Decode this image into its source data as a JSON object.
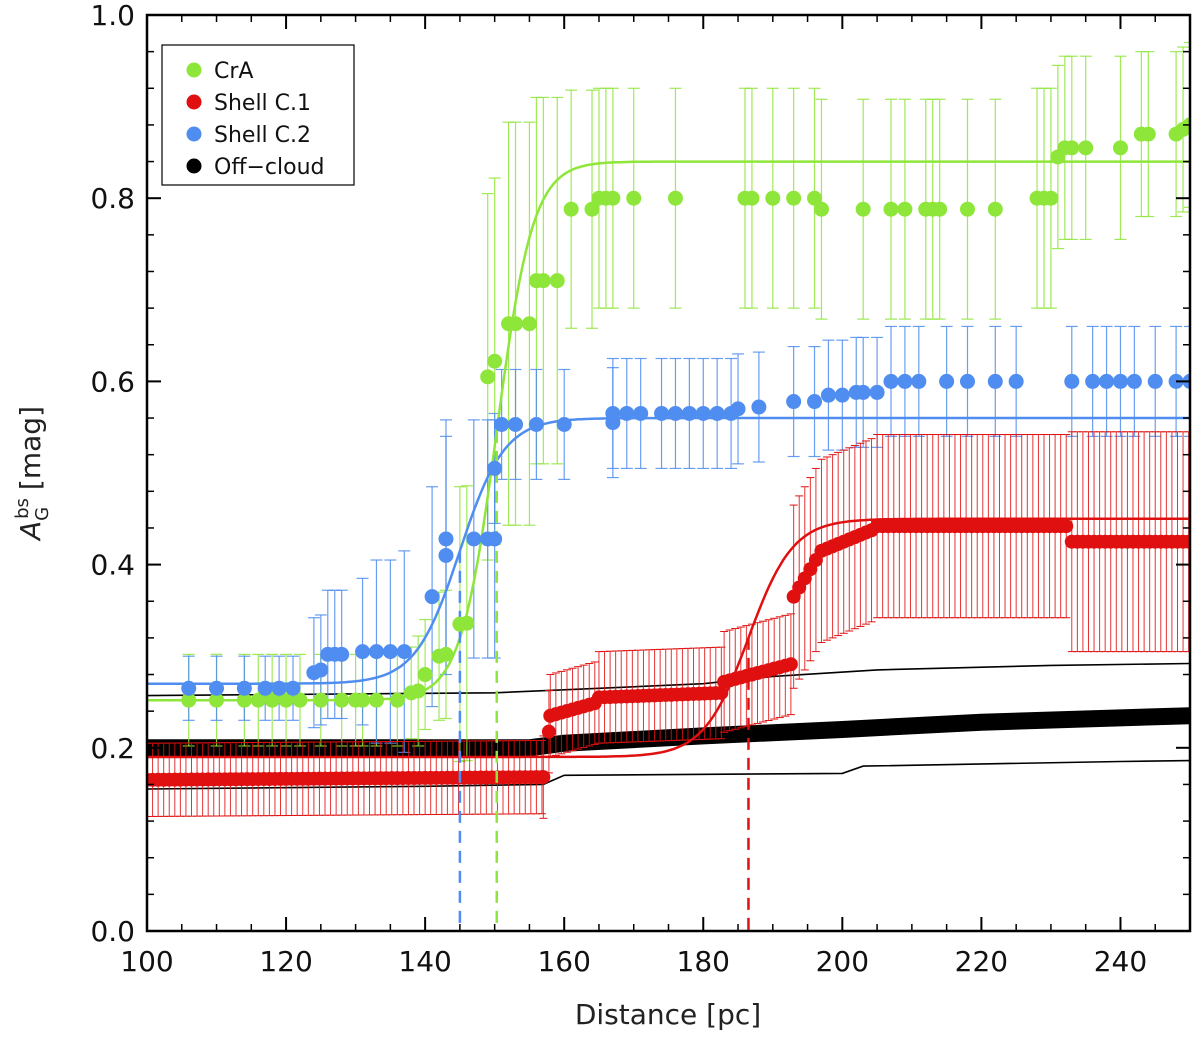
{
  "chart_data": {
    "type": "scatter",
    "xlabel": "Distance [pc]",
    "ylabel": "A",
    "ylabel_sup": "bs",
    "ylabel_sub": "G",
    "ylabel_unit": "[mag]",
    "xlim": [
      100,
      250
    ],
    "ylim": [
      0.0,
      1.0
    ],
    "x_ticks": [
      "100",
      "120",
      "140",
      "160",
      "180",
      "200",
      "220",
      "240"
    ],
    "y_ticks": [
      "0.0",
      "0.2",
      "0.4",
      "0.6",
      "0.8",
      "1.0"
    ],
    "grid": false,
    "legend_position": "top-left",
    "legend": [
      {
        "label": "CrA",
        "color": "#8fe63a"
      },
      {
        "label": "Shell C.1",
        "color": "#e01010"
      },
      {
        "label": "Shell C.2",
        "color": "#4f8df0"
      },
      {
        "label": "Off−cloud",
        "color": "#000000"
      }
    ],
    "series": [
      {
        "name": "CrA",
        "color": "#8fe63a",
        "points": [
          [
            106,
            0.252,
            0.05
          ],
          [
            110,
            0.252,
            0.05
          ],
          [
            114,
            0.252,
            0.05
          ],
          [
            116,
            0.252,
            0.05
          ],
          [
            118,
            0.252,
            0.05
          ],
          [
            120,
            0.252,
            0.05
          ],
          [
            122,
            0.252,
            0.05
          ],
          [
            125,
            0.252,
            0.05
          ],
          [
            128,
            0.252,
            0.05
          ],
          [
            130,
            0.252,
            0.05
          ],
          [
            131,
            0.252,
            0.05
          ],
          [
            133,
            0.252,
            0.05
          ],
          [
            136,
            0.252,
            0.05
          ],
          [
            138,
            0.26,
            0.05
          ],
          [
            139,
            0.262,
            0.06
          ],
          [
            140,
            0.28,
            0.06
          ],
          [
            142,
            0.3,
            0.07
          ],
          [
            143,
            0.302,
            0.07
          ],
          [
            145,
            0.335,
            0.15
          ],
          [
            146,
            0.336,
            0.15
          ],
          [
            149,
            0.605,
            0.2
          ],
          [
            150,
            0.622,
            0.2
          ],
          [
            152,
            0.663,
            0.22
          ],
          [
            153,
            0.663,
            0.22
          ],
          [
            155,
            0.663,
            0.22
          ],
          [
            156,
            0.71,
            0.2
          ],
          [
            157,
            0.71,
            0.2
          ],
          [
            159,
            0.71,
            0.2
          ],
          [
            161,
            0.788,
            0.13
          ],
          [
            164,
            0.788,
            0.13
          ],
          [
            165,
            0.8,
            0.12
          ],
          [
            166,
            0.8,
            0.12
          ],
          [
            167,
            0.8,
            0.12
          ],
          [
            170,
            0.8,
            0.12
          ],
          [
            176,
            0.8,
            0.12
          ],
          [
            186,
            0.8,
            0.12
          ],
          [
            187,
            0.8,
            0.12
          ],
          [
            190,
            0.8,
            0.12
          ],
          [
            193,
            0.8,
            0.12
          ],
          [
            196,
            0.8,
            0.12
          ],
          [
            197,
            0.788,
            0.12
          ],
          [
            203,
            0.788,
            0.12
          ],
          [
            207,
            0.788,
            0.12
          ],
          [
            209,
            0.788,
            0.12
          ],
          [
            212,
            0.788,
            0.12
          ],
          [
            213,
            0.788,
            0.12
          ],
          [
            214,
            0.788,
            0.12
          ],
          [
            218,
            0.788,
            0.12
          ],
          [
            222,
            0.788,
            0.12
          ],
          [
            228,
            0.8,
            0.12
          ],
          [
            229,
            0.8,
            0.12
          ],
          [
            230,
            0.8,
            0.12
          ],
          [
            231,
            0.845,
            0.1
          ],
          [
            232,
            0.855,
            0.1
          ],
          [
            233,
            0.855,
            0.1
          ],
          [
            235,
            0.855,
            0.1
          ],
          [
            240,
            0.855,
            0.1
          ],
          [
            243,
            0.87,
            0.09
          ],
          [
            244,
            0.87,
            0.09
          ],
          [
            248,
            0.87,
            0.09
          ],
          [
            249,
            0.875,
            0.09
          ],
          [
            250,
            0.88,
            0.09
          ]
        ]
      },
      {
        "name": "Shell C.2",
        "color": "#4f8df0",
        "points": [
          [
            106,
            0.265,
            0.035
          ],
          [
            110,
            0.265,
            0.035
          ],
          [
            114,
            0.265,
            0.035
          ],
          [
            117,
            0.265,
            0.035
          ],
          [
            119,
            0.265,
            0.035
          ],
          [
            121,
            0.265,
            0.035
          ],
          [
            124,
            0.282,
            0.06
          ],
          [
            125,
            0.285,
            0.06
          ],
          [
            126,
            0.302,
            0.07
          ],
          [
            127,
            0.302,
            0.07
          ],
          [
            128,
            0.302,
            0.07
          ],
          [
            131,
            0.305,
            0.08
          ],
          [
            133,
            0.305,
            0.1
          ],
          [
            135,
            0.305,
            0.1
          ],
          [
            137,
            0.305,
            0.11
          ],
          [
            141,
            0.365,
            0.12
          ],
          [
            143,
            0.41,
            0.13
          ],
          [
            143,
            0.428,
            0.13
          ],
          [
            147,
            0.428,
            0.13
          ],
          [
            149,
            0.428,
            0.13
          ],
          [
            150,
            0.428,
            0.13
          ],
          [
            150,
            0.505,
            0.06
          ],
          [
            151,
            0.553,
            0.06
          ],
          [
            153,
            0.553,
            0.06
          ],
          [
            156,
            0.553,
            0.06
          ],
          [
            160,
            0.553,
            0.06
          ],
          [
            167,
            0.555,
            0.06
          ],
          [
            167,
            0.565,
            0.06
          ],
          [
            169,
            0.565,
            0.06
          ],
          [
            171,
            0.565,
            0.06
          ],
          [
            174,
            0.565,
            0.06
          ],
          [
            176,
            0.565,
            0.06
          ],
          [
            178,
            0.565,
            0.06
          ],
          [
            180,
            0.565,
            0.06
          ],
          [
            182,
            0.565,
            0.06
          ],
          [
            184,
            0.565,
            0.06
          ],
          [
            185,
            0.57,
            0.06
          ],
          [
            188,
            0.572,
            0.06
          ],
          [
            193,
            0.578,
            0.06
          ],
          [
            196,
            0.578,
            0.06
          ],
          [
            198,
            0.585,
            0.06
          ],
          [
            200,
            0.585,
            0.06
          ],
          [
            202,
            0.588,
            0.06
          ],
          [
            203,
            0.588,
            0.06
          ],
          [
            205,
            0.588,
            0.06
          ],
          [
            207,
            0.6,
            0.06
          ],
          [
            209,
            0.6,
            0.06
          ],
          [
            211,
            0.6,
            0.06
          ],
          [
            215,
            0.6,
            0.06
          ],
          [
            218,
            0.6,
            0.06
          ],
          [
            222,
            0.6,
            0.06
          ],
          [
            225,
            0.6,
            0.06
          ],
          [
            233,
            0.6,
            0.06
          ],
          [
            236,
            0.6,
            0.06
          ],
          [
            238,
            0.6,
            0.06
          ],
          [
            240,
            0.6,
            0.06
          ],
          [
            242,
            0.6,
            0.06
          ],
          [
            245,
            0.6,
            0.06
          ],
          [
            248,
            0.6,
            0.06
          ],
          [
            250,
            0.6,
            0.06
          ]
        ]
      }
    ],
    "red_series": {
      "name": "Shell C.1",
      "color": "#e01010",
      "segments": [
        {
          "x0": 100,
          "x1": 157,
          "y0": 0.165,
          "y1": 0.168,
          "err": 0.04
        },
        {
          "x0": 157,
          "x1": 158,
          "y0": 0.168,
          "y1": 0.23,
          "err": 0.045
        },
        {
          "x0": 158,
          "x1": 165,
          "y0": 0.235,
          "y1": 0.25,
          "err": 0.045
        },
        {
          "x0": 165,
          "x1": 183,
          "y0": 0.255,
          "y1": 0.26,
          "err": 0.05
        },
        {
          "x0": 183,
          "x1": 193,
          "y0": 0.272,
          "y1": 0.292,
          "err": 0.055
        },
        {
          "x0": 193,
          "x1": 197,
          "y0": 0.365,
          "y1": 0.415,
          "err": 0.1
        },
        {
          "x0": 197,
          "x1": 205,
          "y0": 0.415,
          "y1": 0.44,
          "err": 0.1
        },
        {
          "x0": 205,
          "x1": 233,
          "y0": 0.442,
          "y1": 0.442,
          "err": 0.1
        },
        {
          "x0": 233,
          "x1": 250,
          "y0": 0.425,
          "y1": 0.425,
          "err": 0.12
        }
      ],
      "step": 0.8
    },
    "off_cloud": {
      "name": "Off−cloud",
      "color": "#000000",
      "center": [
        [
          100,
          0.2
        ],
        [
          155,
          0.2
        ],
        [
          160,
          0.205
        ],
        [
          180,
          0.213
        ],
        [
          200,
          0.22
        ],
        [
          220,
          0.228
        ],
        [
          250,
          0.235
        ]
      ],
      "upper": [
        [
          100,
          0.257
        ],
        [
          150,
          0.26
        ],
        [
          165,
          0.265
        ],
        [
          180,
          0.27
        ],
        [
          190,
          0.278
        ],
        [
          205,
          0.285
        ],
        [
          230,
          0.29
        ],
        [
          250,
          0.292
        ]
      ],
      "lower": [
        [
          100,
          0.155
        ],
        [
          140,
          0.158
        ],
        [
          157,
          0.16
        ],
        [
          160,
          0.17
        ],
        [
          200,
          0.172
        ],
        [
          203,
          0.18
        ],
        [
          240,
          0.185
        ],
        [
          250,
          0.186
        ]
      ]
    },
    "fits": [
      {
        "name": "CrA",
        "color": "#8fe63a",
        "base": 0.252,
        "top": 0.84,
        "x0": 150.3,
        "w": 2.6
      },
      {
        "name": "Shell C.2",
        "color": "#4f8df0",
        "base": 0.27,
        "top": 0.56,
        "x0": 145.0,
        "w": 3.2
      },
      {
        "name": "Shell C.1",
        "color": "#e01010",
        "base": 0.19,
        "top": 0.45,
        "x0": 186.5,
        "w": 3.2
      }
    ],
    "dashed_markers": [
      {
        "x": 145.0,
        "color": "#4f8df0"
      },
      {
        "x": 150.3,
        "color": "#8fe63a"
      },
      {
        "x": 186.5,
        "color": "#e01010"
      }
    ]
  }
}
